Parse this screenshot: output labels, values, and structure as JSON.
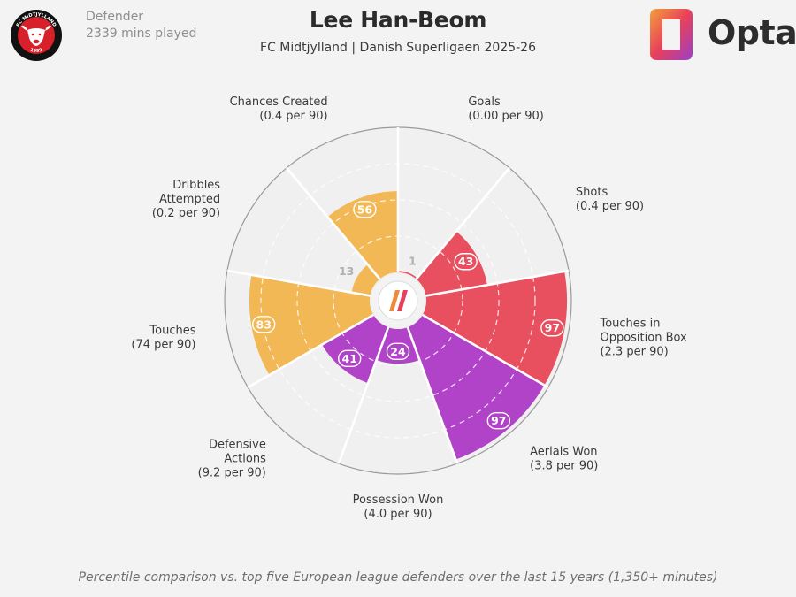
{
  "header": {
    "player_name": "Lee Han-Beom",
    "team_competition": "FC Midtjylland | Danish Superligaen 2025-26",
    "position": "Defender",
    "minutes": "2339 mins played",
    "brand": "Opta"
  },
  "badge": {
    "icon": "fc-midtjylland-crest",
    "top_text": "FC MIDTJYLLAND",
    "bottom_text": "1999"
  },
  "footnote": "Percentile comparison vs. top five European league defenders over the last 15 years (1,350+ minutes)",
  "colors": {
    "attacking": "#e8505f",
    "aerial_defensive": "#b143c8",
    "possession": "#f3b856",
    "background": "#f4f3f3",
    "wedge_bg": "#f0efef"
  },
  "chart_data": {
    "type": "polar-bar",
    "scale": [
      0,
      100
    ],
    "gridlines": [
      25,
      50,
      75
    ],
    "metrics": [
      {
        "name_lines": [
          "Goals"
        ],
        "detail": "(0.00 per 90)",
        "percentile": 1,
        "group": "attacking",
        "color": "#e8505f"
      },
      {
        "name_lines": [
          "Shots"
        ],
        "detail": "(0.4 per 90)",
        "percentile": 43,
        "group": "attacking",
        "color": "#e8505f"
      },
      {
        "name_lines": [
          "Touches in",
          "Opposition Box"
        ],
        "detail": "(2.3 per 90)",
        "percentile": 97,
        "group": "attacking",
        "color": "#e8505f"
      },
      {
        "name_lines": [
          "Aerials Won"
        ],
        "detail": "(3.8 per 90)",
        "percentile": 97,
        "group": "defending",
        "color": "#b143c8"
      },
      {
        "name_lines": [
          "Possession Won"
        ],
        "detail": "(4.0 per 90)",
        "percentile": 24,
        "group": "defending",
        "color": "#b143c8"
      },
      {
        "name_lines": [
          "Defensive",
          "Actions"
        ],
        "detail": "(9.2 per 90)",
        "percentile": 41,
        "group": "defending",
        "color": "#b143c8"
      },
      {
        "name_lines": [
          "Touches"
        ],
        "detail": "(74 per 90)",
        "percentile": 83,
        "group": "possession",
        "color": "#f3b856"
      },
      {
        "name_lines": [
          "Dribbles",
          "Attempted"
        ],
        "detail": "(0.2 per 90)",
        "percentile": 13,
        "group": "possession",
        "color": "#f3b856"
      },
      {
        "name_lines": [
          "Chances Created"
        ],
        "detail": "(0.4 per 90)",
        "percentile": 56,
        "group": "possession",
        "color": "#f3b856"
      }
    ]
  }
}
